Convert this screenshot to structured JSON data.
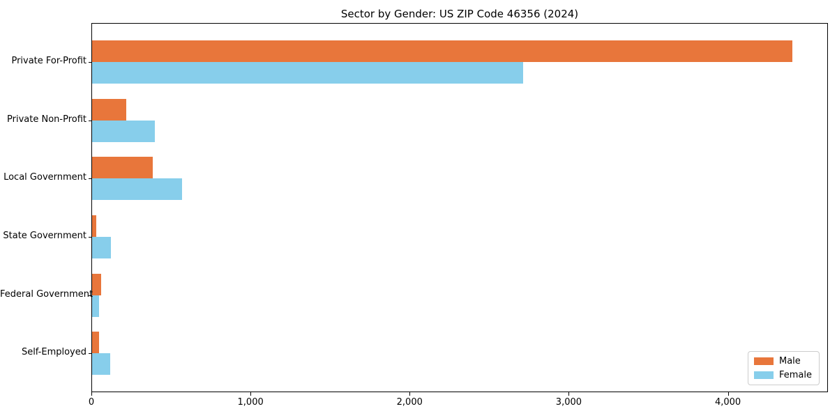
{
  "title": "Sector by Gender: US ZIP Code 46356 (2024)",
  "colors": {
    "male": "#e8763b",
    "female": "#87ceeb",
    "axis": "#000000",
    "text": "#000000",
    "legend_border": "#cccccc",
    "background": "#ffffff"
  },
  "chart_data": {
    "type": "bar",
    "orientation": "horizontal",
    "title": "Sector by Gender: US ZIP Code 46356 (2024)",
    "categories": [
      "Private For-Profit",
      "Private Non-Profit",
      "Local Government",
      "State Government",
      "Federal Government",
      "Self-Employed"
    ],
    "series": [
      {
        "name": "Male",
        "color": "#e8763b",
        "values": [
          4400,
          215,
          380,
          25,
          55,
          45
        ]
      },
      {
        "name": "Female",
        "color": "#87ceeb",
        "values": [
          2710,
          395,
          565,
          120,
          45,
          115
        ]
      }
    ],
    "xlabel": "",
    "ylabel": "",
    "xlim": [
      0,
      4620
    ],
    "x_ticks": [
      {
        "value": 0,
        "label": "0"
      },
      {
        "value": 1000,
        "label": "1,000"
      },
      {
        "value": 2000,
        "label": "2,000"
      },
      {
        "value": 3000,
        "label": "3,000"
      },
      {
        "value": 4000,
        "label": "4,000"
      }
    ],
    "grid": false,
    "legend": {
      "position": "lower right",
      "items": [
        "Male",
        "Female"
      ]
    }
  }
}
